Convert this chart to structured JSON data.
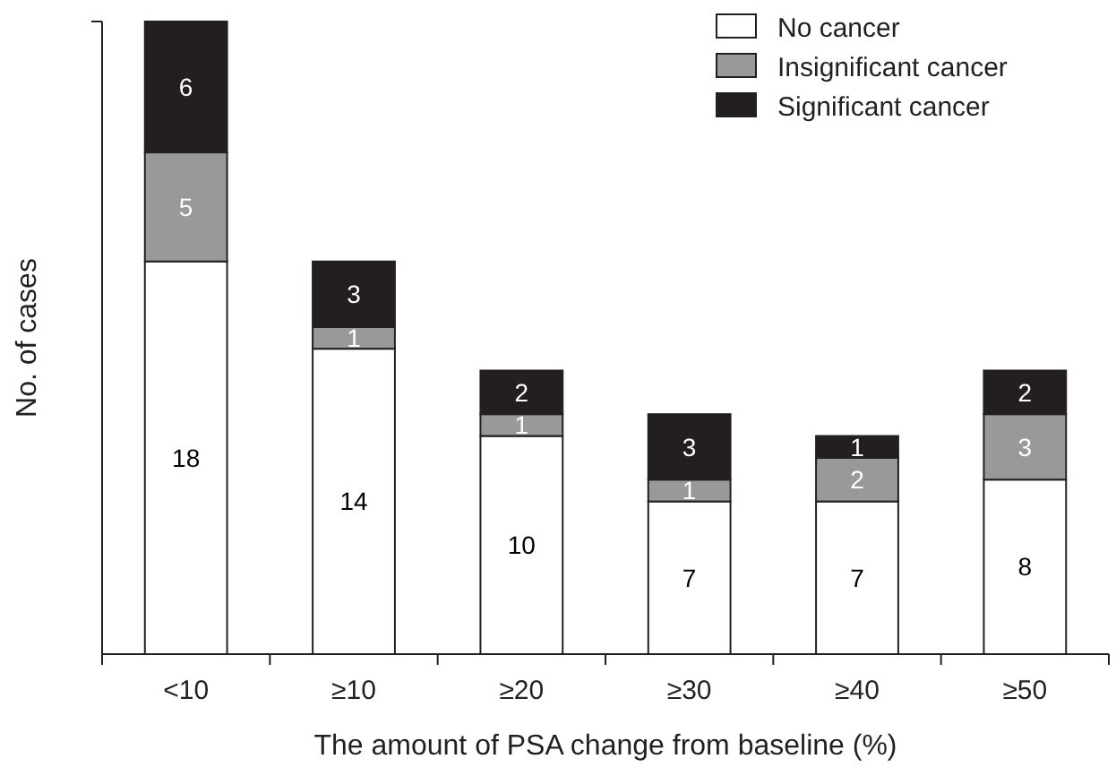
{
  "chart_data": {
    "type": "bar",
    "stacked": true,
    "data_labels": true,
    "legend": "top right",
    "xlabel": "The amount of PSA change from baseline (%)",
    "ylabel": "No. of cases",
    "categories": [
      "<10",
      "≥10",
      "≥20",
      "≥30",
      "≥40",
      "≥50"
    ],
    "series": [
      {
        "name": "No cancer",
        "color": "#ffffff",
        "values": [
          18,
          14,
          10,
          7,
          7,
          8
        ]
      },
      {
        "name": "Insignificant cancer",
        "color": "#999999",
        "values": [
          5,
          1,
          1,
          1,
          2,
          3
        ]
      },
      {
        "name": "Significant cancer",
        "color": "#231f20",
        "values": [
          6,
          3,
          2,
          3,
          1,
          2
        ]
      }
    ]
  }
}
